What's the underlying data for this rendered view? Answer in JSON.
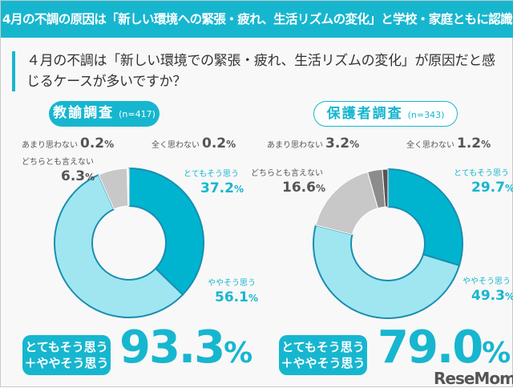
{
  "header": {
    "title": "4月の不調の原因は「新しい環境への緊張・疲れ、生活リズムの変化」と学校・家庭ともに認識"
  },
  "question": "４月の不調は「新しい環境での緊張・疲れ、生活リズムの変化」が原因だと感じるケースが多いですか？",
  "colors": {
    "accent": "#17b6cf",
    "strong": "#00b4d0",
    "somewhat": "#9fe6f1",
    "neither": "#c8c8c8",
    "not_much": "#8c8c8c",
    "not_at_all": "#555555"
  },
  "chart_data": [
    {
      "type": "pie",
      "title": "教諭調査",
      "n": "(n=417)",
      "categories": [
        "とてもそう思う",
        "ややそう思う",
        "どちらとも言えない",
        "あまり思わない",
        "全く思わない"
      ],
      "values": [
        37.2,
        56.1,
        6.3,
        0.2,
        0.2
      ],
      "labels": [
        "37.2",
        "56.1",
        "6.3",
        "0.2",
        "0.2"
      ],
      "summary_label": [
        "とてもそう思う",
        "＋ややそう思う"
      ],
      "summary_value": "93.3"
    },
    {
      "type": "pie",
      "title": "保護者調査",
      "n": "(n=343)",
      "categories": [
        "とてもそう思う",
        "ややそう思う",
        "どちらとも言えない",
        "あまり思わない",
        "全く思わない"
      ],
      "values": [
        29.7,
        49.3,
        16.6,
        3.2,
        1.2
      ],
      "labels": [
        "29.7",
        "49.3",
        "16.6",
        "3.2",
        "1.2"
      ],
      "summary_label": [
        "とてもそう思う",
        "＋ややそう思う"
      ],
      "summary_value": "79.0"
    }
  ],
  "unit": "%",
  "logo": "ReseMom"
}
